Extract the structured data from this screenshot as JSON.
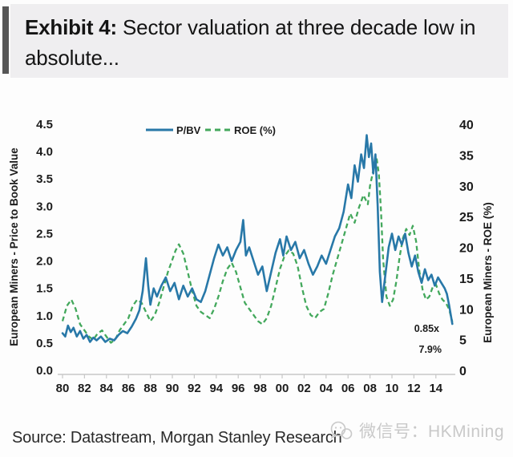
{
  "title": {
    "line1_bold": "Exhibit 4:",
    "line1_rest": "  Sector valuation at three decade low in",
    "line2": "absolute..."
  },
  "source_line": "Source: Datastream, Morgan Stanley Research",
  "watermark": {
    "icon": "wechat-icon",
    "text": "微信号：HKMining"
  },
  "colors": {
    "pbv_line": "#2878a8",
    "roe_line": "#43a85c",
    "title_bg": "#efeef0",
    "axis_gray": "#c8c8c8",
    "watermark_gray": "#c9c9c9"
  },
  "chart_data": {
    "type": "line",
    "title": "",
    "x_axis": {
      "tick_labels": [
        "80",
        "82",
        "84",
        "86",
        "88",
        "90",
        "92",
        "94",
        "96",
        "98",
        "00",
        "02",
        "04",
        "06",
        "08",
        "10",
        "12",
        "14"
      ],
      "tick_years": [
        1980,
        1982,
        1984,
        1986,
        1988,
        1990,
        1992,
        1994,
        1996,
        1998,
        2000,
        2002,
        2004,
        2006,
        2008,
        2010,
        2012,
        2014
      ],
      "range": [
        1979.5,
        2016
      ]
    },
    "y_left": {
      "label": "European Miners - Price to Book Value",
      "tick_labels": [
        "0.0",
        "0.5",
        "1.0",
        "1.5",
        "2.0",
        "2.5",
        "3.0",
        "3.5",
        "4.0",
        "4.5"
      ],
      "tick_values": [
        0,
        0.5,
        1.0,
        1.5,
        2.0,
        2.5,
        3.0,
        3.5,
        4.0,
        4.5
      ],
      "range": [
        0,
        4.5
      ]
    },
    "y_right": {
      "label": "European Miners - ROE (%)",
      "tick_labels": [
        "0",
        "5",
        "10",
        "15",
        "20",
        "25",
        "30",
        "35",
        "40"
      ],
      "tick_values": [
        0,
        5,
        10,
        15,
        20,
        25,
        30,
        35,
        40
      ],
      "range": [
        0,
        40
      ]
    },
    "legend": {
      "position": "top",
      "entries": [
        "P/BV",
        "ROE (%)"
      ]
    },
    "series": [
      {
        "name": "ROE (%)",
        "axis": "right",
        "color": "#43a85c",
        "style": "dashed",
        "points": [
          [
            1980.0,
            8.0
          ],
          [
            1980.4,
            10.5
          ],
          [
            1980.8,
            11.5
          ],
          [
            1981.2,
            10.0
          ],
          [
            1981.6,
            7.5
          ],
          [
            1982.0,
            6.5
          ],
          [
            1982.4,
            5.5
          ],
          [
            1982.8,
            5.0
          ],
          [
            1983.2,
            6.0
          ],
          [
            1983.6,
            6.5
          ],
          [
            1984.0,
            5.5
          ],
          [
            1984.4,
            4.5
          ],
          [
            1984.8,
            5.0
          ],
          [
            1985.2,
            6.5
          ],
          [
            1985.6,
            7.5
          ],
          [
            1986.0,
            8.5
          ],
          [
            1986.4,
            10.5
          ],
          [
            1986.8,
            11.5
          ],
          [
            1987.2,
            11.0
          ],
          [
            1987.6,
            9.5
          ],
          [
            1988.0,
            8.0
          ],
          [
            1988.4,
            9.0
          ],
          [
            1988.8,
            11.0
          ],
          [
            1989.2,
            13.5
          ],
          [
            1989.6,
            16.0
          ],
          [
            1990.0,
            18.0
          ],
          [
            1990.3,
            19.5
          ],
          [
            1990.6,
            20.5
          ],
          [
            1991.0,
            19.0
          ],
          [
            1991.4,
            16.0
          ],
          [
            1991.8,
            13.0
          ],
          [
            1992.2,
            10.5
          ],
          [
            1992.6,
            9.5
          ],
          [
            1993.0,
            9.0
          ],
          [
            1993.4,
            8.5
          ],
          [
            1993.8,
            10.0
          ],
          [
            1994.2,
            12.0
          ],
          [
            1994.6,
            14.5
          ],
          [
            1995.0,
            16.5
          ],
          [
            1995.4,
            17.5
          ],
          [
            1995.8,
            16.0
          ],
          [
            1996.2,
            13.5
          ],
          [
            1996.6,
            11.0
          ],
          [
            1997.0,
            10.0
          ],
          [
            1997.4,
            9.0
          ],
          [
            1997.8,
            8.0
          ],
          [
            1998.2,
            7.5
          ],
          [
            1998.6,
            8.5
          ],
          [
            1999.0,
            10.5
          ],
          [
            1999.4,
            13.5
          ],
          [
            1999.8,
            16.5
          ],
          [
            2000.2,
            18.5
          ],
          [
            2000.6,
            19.5
          ],
          [
            2001.0,
            19.0
          ],
          [
            2001.4,
            17.0
          ],
          [
            2001.8,
            13.5
          ],
          [
            2002.2,
            10.5
          ],
          [
            2002.6,
            9.0
          ],
          [
            2003.0,
            8.5
          ],
          [
            2003.4,
            9.5
          ],
          [
            2003.8,
            10.0
          ],
          [
            2004.2,
            12.5
          ],
          [
            2004.6,
            15.5
          ],
          [
            2005.0,
            18.0
          ],
          [
            2005.4,
            20.5
          ],
          [
            2005.8,
            23.0
          ],
          [
            2006.2,
            25.5
          ],
          [
            2006.6,
            24.0
          ],
          [
            2007.0,
            26.5
          ],
          [
            2007.4,
            28.5
          ],
          [
            2007.8,
            27.0
          ],
          [
            2008.0,
            30.0
          ],
          [
            2008.3,
            32.5
          ],
          [
            2008.6,
            34.5
          ],
          [
            2008.8,
            32.0
          ],
          [
            2009.0,
            26.0
          ],
          [
            2009.2,
            18.0
          ],
          [
            2009.5,
            12.0
          ],
          [
            2009.8,
            10.5
          ],
          [
            2010.1,
            11.5
          ],
          [
            2010.4,
            14.5
          ],
          [
            2010.7,
            18.5
          ],
          [
            2011.0,
            21.5
          ],
          [
            2011.3,
            23.0
          ],
          [
            2011.6,
            22.0
          ],
          [
            2011.9,
            23.5
          ],
          [
            2012.2,
            21.0
          ],
          [
            2012.5,
            16.0
          ],
          [
            2012.8,
            13.0
          ],
          [
            2013.1,
            11.5
          ],
          [
            2013.4,
            12.0
          ],
          [
            2013.7,
            13.5
          ],
          [
            2014.0,
            14.0
          ],
          [
            2014.3,
            12.5
          ],
          [
            2014.6,
            11.5
          ],
          [
            2014.9,
            11.0
          ],
          [
            2015.2,
            10.0
          ],
          [
            2015.5,
            7.9
          ]
        ]
      },
      {
        "name": "P/BV",
        "axis": "left",
        "color": "#2878a8",
        "style": "solid",
        "points": [
          [
            1980.0,
            0.68
          ],
          [
            1980.25,
            0.62
          ],
          [
            1980.5,
            0.82
          ],
          [
            1980.75,
            0.7
          ],
          [
            1981.0,
            0.78
          ],
          [
            1981.3,
            0.62
          ],
          [
            1981.6,
            0.72
          ],
          [
            1981.9,
            0.58
          ],
          [
            1982.2,
            0.65
          ],
          [
            1982.5,
            0.52
          ],
          [
            1982.8,
            0.6
          ],
          [
            1983.1,
            0.55
          ],
          [
            1983.5,
            0.62
          ],
          [
            1983.9,
            0.52
          ],
          [
            1984.3,
            0.58
          ],
          [
            1984.7,
            0.55
          ],
          [
            1985.1,
            0.65
          ],
          [
            1985.5,
            0.72
          ],
          [
            1985.9,
            0.68
          ],
          [
            1986.3,
            0.8
          ],
          [
            1986.7,
            0.95
          ],
          [
            1987.0,
            1.1
          ],
          [
            1987.3,
            1.45
          ],
          [
            1987.6,
            2.05
          ],
          [
            1987.8,
            1.55
          ],
          [
            1988.0,
            1.2
          ],
          [
            1988.3,
            1.5
          ],
          [
            1988.6,
            1.35
          ],
          [
            1989.0,
            1.55
          ],
          [
            1989.4,
            1.7
          ],
          [
            1989.8,
            1.45
          ],
          [
            1990.2,
            1.6
          ],
          [
            1990.6,
            1.3
          ],
          [
            1991.0,
            1.55
          ],
          [
            1991.4,
            1.35
          ],
          [
            1991.8,
            1.5
          ],
          [
            1992.2,
            1.3
          ],
          [
            1992.6,
            1.25
          ],
          [
            1993.0,
            1.45
          ],
          [
            1993.4,
            1.75
          ],
          [
            1993.8,
            2.05
          ],
          [
            1994.2,
            2.3
          ],
          [
            1994.6,
            2.1
          ],
          [
            1995.0,
            2.25
          ],
          [
            1995.4,
            2.0
          ],
          [
            1995.8,
            2.2
          ],
          [
            1996.2,
            2.35
          ],
          [
            1996.45,
            2.75
          ],
          [
            1996.7,
            2.1
          ],
          [
            1997.0,
            2.25
          ],
          [
            1997.4,
            2.0
          ],
          [
            1997.8,
            1.75
          ],
          [
            1998.2,
            1.9
          ],
          [
            1998.6,
            1.45
          ],
          [
            1999.0,
            1.8
          ],
          [
            1999.4,
            2.15
          ],
          [
            1999.8,
            2.4
          ],
          [
            2000.1,
            2.1
          ],
          [
            2000.4,
            2.45
          ],
          [
            2000.8,
            2.2
          ],
          [
            2001.2,
            2.35
          ],
          [
            2001.6,
            2.05
          ],
          [
            2002.0,
            2.2
          ],
          [
            2002.4,
            1.95
          ],
          [
            2002.8,
            1.75
          ],
          [
            2003.2,
            1.9
          ],
          [
            2003.6,
            2.1
          ],
          [
            2004.0,
            1.95
          ],
          [
            2004.4,
            2.2
          ],
          [
            2004.8,
            2.45
          ],
          [
            2005.2,
            2.6
          ],
          [
            2005.6,
            2.9
          ],
          [
            2006.0,
            3.4
          ],
          [
            2006.3,
            3.15
          ],
          [
            2006.6,
            3.75
          ],
          [
            2006.9,
            3.45
          ],
          [
            2007.2,
            3.95
          ],
          [
            2007.45,
            3.7
          ],
          [
            2007.7,
            4.3
          ],
          [
            2007.9,
            3.9
          ],
          [
            2008.1,
            4.15
          ],
          [
            2008.3,
            3.6
          ],
          [
            2008.5,
            3.95
          ],
          [
            2008.7,
            3.0
          ],
          [
            2008.9,
            1.8
          ],
          [
            2009.1,
            1.25
          ],
          [
            2009.4,
            1.75
          ],
          [
            2009.7,
            2.25
          ],
          [
            2010.0,
            2.5
          ],
          [
            2010.3,
            2.2
          ],
          [
            2010.6,
            2.45
          ],
          [
            2010.9,
            2.3
          ],
          [
            2011.2,
            2.5
          ],
          [
            2011.5,
            2.15
          ],
          [
            2011.8,
            1.9
          ],
          [
            2012.1,
            2.1
          ],
          [
            2012.4,
            1.8
          ],
          [
            2012.7,
            1.6
          ],
          [
            2013.0,
            1.85
          ],
          [
            2013.3,
            1.65
          ],
          [
            2013.6,
            1.75
          ],
          [
            2013.9,
            1.55
          ],
          [
            2014.2,
            1.7
          ],
          [
            2014.5,
            1.6
          ],
          [
            2014.8,
            1.5
          ],
          [
            2015.0,
            1.4
          ],
          [
            2015.2,
            1.2
          ],
          [
            2015.5,
            0.85
          ]
        ]
      }
    ],
    "annotations": [
      {
        "text": "0.85x",
        "refers_to": "P/BV latest value"
      },
      {
        "text": "7.9%",
        "refers_to": "ROE latest value"
      }
    ]
  }
}
